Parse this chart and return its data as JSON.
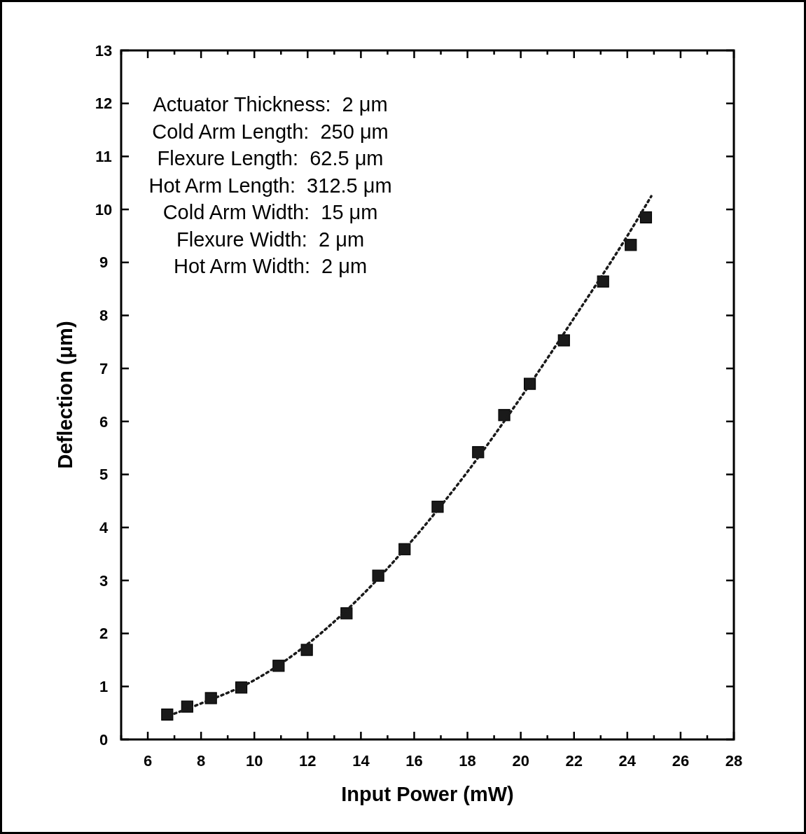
{
  "chart_data": {
    "type": "scatter",
    "xlabel": "Input Power (mW)",
    "ylabel": "Deflection (μm)",
    "annotations": [
      "Actuator Thickness:  2 μm",
      "Cold Arm Length:  250 μm",
      "Flexure Length:  62.5 μm",
      "Hot Arm Length:  312.5 μm",
      "Cold Arm Width:  15 μm",
      "Flexure Width:  2 μm",
      "Hot Arm Width:  2 μm"
    ],
    "xlim": [
      5,
      28
    ],
    "ylim": [
      0,
      13
    ],
    "xticks": [
      {
        "value": 5,
        "label": null
      },
      6,
      {
        "value": 7,
        "label": null
      },
      8,
      {
        "value": 9,
        "label": null
      },
      10,
      {
        "value": 11,
        "label": null
      },
      12,
      {
        "value": 13,
        "label": null
      },
      14,
      {
        "value": 15,
        "label": null
      },
      16,
      {
        "value": 17,
        "label": null
      },
      18,
      {
        "value": 19,
        "label": null
      },
      20,
      {
        "value": 21,
        "label": null
      },
      22,
      {
        "value": 23,
        "label": null
      },
      24,
      {
        "value": 25,
        "label": null
      },
      26,
      {
        "value": 27,
        "label": null
      },
      28
    ],
    "yticks": [
      0,
      1,
      2,
      3,
      4,
      5,
      6,
      7,
      8,
      9,
      10,
      11,
      12,
      13
    ],
    "grid": false,
    "series": [
      {
        "color": "#1a1a1a",
        "marker": "square",
        "x": [
          6.73,
          7.48,
          8.37,
          9.51,
          10.91,
          11.97,
          13.46,
          14.65,
          15.64,
          16.88,
          18.4,
          19.38,
          20.34,
          21.62,
          23.09,
          24.13,
          24.7
        ],
        "values": [
          0.47,
          0.62,
          0.78,
          0.98,
          1.39,
          1.69,
          2.38,
          3.09,
          3.59,
          4.39,
          5.42,
          6.12,
          6.71,
          7.53,
          8.64,
          9.33,
          9.85
        ]
      },
      {
        "type": "line",
        "color": "#1a1a1a",
        "line_style": "dotted",
        "marker": "none",
        "x": [
          6.8,
          8,
          10,
          12,
          14,
          16,
          18,
          20,
          22,
          24,
          24.9
        ],
        "values": [
          0.45,
          0.68,
          1.12,
          1.8,
          2.7,
          3.8,
          5.05,
          6.45,
          7.95,
          9.5,
          10.25
        ]
      }
    ]
  }
}
